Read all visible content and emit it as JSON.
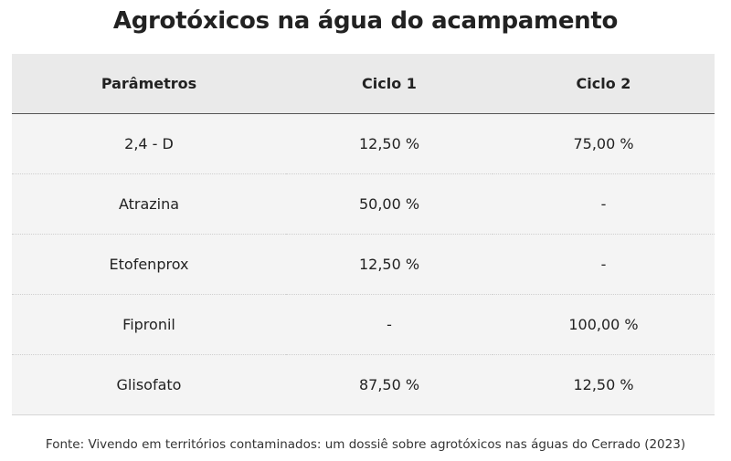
{
  "title": "Agrotóxicos na água do acampamento",
  "table": {
    "headers": [
      "Parâmetros",
      "Ciclo 1",
      "Ciclo 2"
    ],
    "rows": [
      [
        "2,4 - D",
        "12,50 %",
        "75,00 %"
      ],
      [
        "Atrazina",
        "50,00 %",
        "-"
      ],
      [
        "Etofenprox",
        "12,50 %",
        "-"
      ],
      [
        "Fipronil",
        "-",
        "100,00 %"
      ],
      [
        "Glisofato",
        "87,50 %",
        "12,50 %"
      ]
    ]
  },
  "source": "Fonte: Vivendo em territórios contaminados: um dossiê sobre agrotóxicos nas águas do Cerrado (2023)",
  "colors": {
    "header_bg": "#eaeaea",
    "row_bg": "#f4f4f4",
    "header_rule": "#555555"
  }
}
